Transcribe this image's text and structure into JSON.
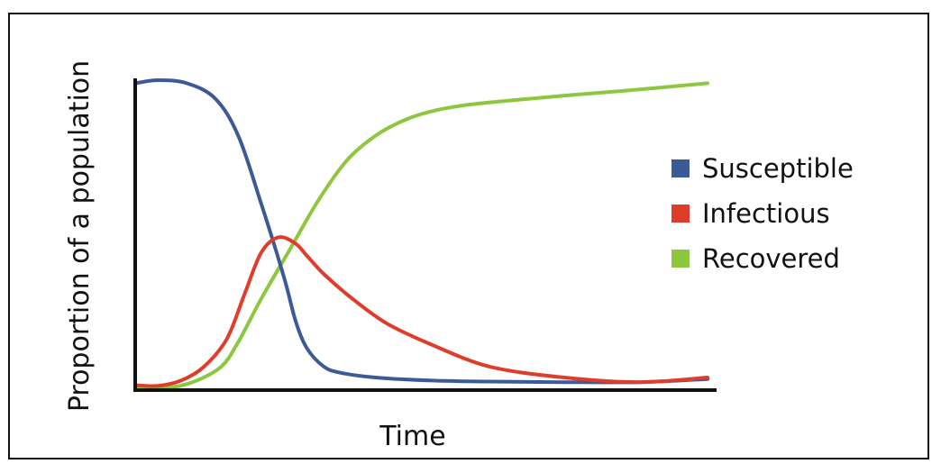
{
  "chart_data": {
    "type": "line",
    "xlabel": "Time",
    "ylabel": "Proportion of a population",
    "xlim": [
      0,
      100
    ],
    "ylim": [
      0,
      1
    ],
    "grid": false,
    "legend_position": "right",
    "series": [
      {
        "name": "Susceptible",
        "color": "#3d5a98",
        "x": [
          0,
          4,
          9,
          14,
          18,
          22,
          26,
          28,
          30,
          33,
          36,
          42,
          52,
          62,
          75,
          88,
          100
        ],
        "y": [
          0.99,
          1.0,
          0.99,
          0.94,
          0.82,
          0.6,
          0.36,
          0.22,
          0.13,
          0.07,
          0.05,
          0.035,
          0.025,
          0.022,
          0.02,
          0.02,
          0.03
        ]
      },
      {
        "name": "Infectious",
        "color": "#e03c2a",
        "x": [
          0,
          4,
          8,
          12,
          16,
          19,
          22,
          25,
          28,
          30,
          33,
          38,
          44,
          52,
          62,
          75,
          88,
          100
        ],
        "y": [
          0.01,
          0.008,
          0.025,
          0.07,
          0.16,
          0.3,
          0.44,
          0.49,
          0.47,
          0.43,
          0.37,
          0.29,
          0.21,
          0.14,
          0.07,
          0.035,
          0.02,
          0.035
        ]
      },
      {
        "name": "Recovered",
        "color": "#8dc63f",
        "x": [
          0,
          5,
          10,
          15,
          18,
          22,
          27,
          32,
          37,
          42,
          47,
          52,
          58,
          66,
          75,
          85,
          100
        ],
        "y": [
          0.0,
          0.0,
          0.02,
          0.07,
          0.15,
          0.29,
          0.45,
          0.61,
          0.74,
          0.82,
          0.87,
          0.9,
          0.92,
          0.935,
          0.95,
          0.965,
          0.99
        ]
      }
    ]
  }
}
